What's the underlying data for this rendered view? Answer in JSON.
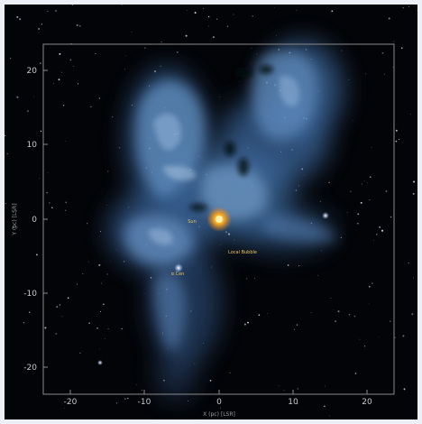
{
  "figure": {
    "x_ticks": [
      "-20",
      "-10",
      "0",
      "10",
      "20"
    ],
    "y_ticks": [
      "20",
      "10",
      "0",
      "-10",
      "-20"
    ],
    "x_axis_label": "X (pc) [LSR]",
    "y_axis_label": "Y (pc) [LSR]",
    "annotations": [
      "Sun",
      "Local Bubble",
      "α Cen"
    ],
    "colors": {
      "background": "#030407",
      "frame": "#8a8a8a",
      "cloud": "#5a8fc4",
      "sun": "#ffb020",
      "annotation": "#e8c25a"
    }
  }
}
